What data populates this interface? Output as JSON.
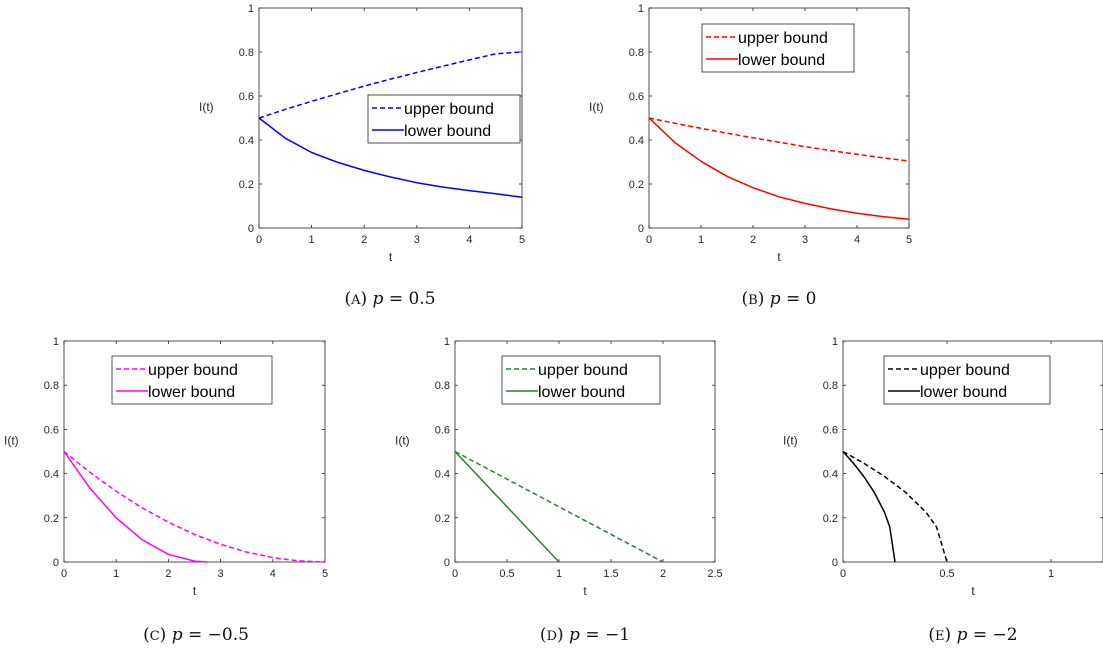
{
  "chart_data": [
    {
      "type": "line",
      "caption": {
        "letter": "A",
        "param": "p",
        "value": "0.5"
      },
      "xlabel": "t",
      "ylabel": "I(t)",
      "xlim": [
        0,
        5
      ],
      "ylim": [
        0,
        1
      ],
      "xticks": [
        "0",
        "1",
        "2",
        "3",
        "4",
        "5"
      ],
      "yticks": [
        "0",
        "0.2",
        "0.4",
        "0.6",
        "0.8",
        "1"
      ],
      "color": "#0000ff",
      "legend": {
        "placement": "center-right"
      },
      "series": [
        {
          "name": "upper bound",
          "style": "dashed",
          "x": [
            0,
            0.5,
            1,
            1.5,
            2,
            2.5,
            3,
            3.5,
            4,
            4.5,
            5
          ],
          "y": [
            0.5,
            0.539,
            0.576,
            0.611,
            0.645,
            0.677,
            0.707,
            0.736,
            0.764,
            0.792,
            0.8
          ]
        },
        {
          "name": "lower bound",
          "style": "solid",
          "x": [
            0,
            0.5,
            1,
            1.5,
            2,
            2.5,
            3,
            3.5,
            4,
            4.5,
            5
          ],
          "y": [
            0.5,
            0.408,
            0.343,
            0.298,
            0.262,
            0.232,
            0.206,
            0.186,
            0.17,
            0.156,
            0.14
          ]
        }
      ]
    },
    {
      "type": "line",
      "caption": {
        "letter": "B",
        "param": "p",
        "value": "0"
      },
      "xlabel": "t",
      "ylabel": "I(t)",
      "xlim": [
        0,
        5
      ],
      "ylim": [
        0,
        1
      ],
      "xticks": [
        "0",
        "1",
        "2",
        "3",
        "4",
        "5"
      ],
      "yticks": [
        "0",
        "0.2",
        "0.4",
        "0.6",
        "0.8",
        "1"
      ],
      "color": "#ff0000",
      "legend": {
        "placement": "top-center"
      },
      "series": [
        {
          "name": "upper bound",
          "style": "dashed",
          "x": [
            0,
            0.5,
            1,
            1.5,
            2,
            2.5,
            3,
            3.5,
            4,
            4.5,
            5
          ],
          "y": [
            0.5,
            0.476,
            0.453,
            0.431,
            0.41,
            0.39,
            0.37,
            0.352,
            0.335,
            0.319,
            0.304
          ]
        },
        {
          "name": "lower bound",
          "style": "solid",
          "x": [
            0,
            0.5,
            1,
            1.5,
            2,
            2.5,
            3,
            3.5,
            4,
            4.5,
            5
          ],
          "y": [
            0.5,
            0.388,
            0.303,
            0.235,
            0.183,
            0.142,
            0.112,
            0.087,
            0.067,
            0.052,
            0.04
          ]
        }
      ]
    },
    {
      "type": "line",
      "caption": {
        "letter": "C",
        "param": "p",
        "value": "−0.5"
      },
      "xlabel": "t",
      "ylabel": "I(t)",
      "xlim": [
        0,
        5
      ],
      "ylim": [
        0,
        1
      ],
      "xticks": [
        "0",
        "1",
        "2",
        "3",
        "4",
        "5"
      ],
      "yticks": [
        "0",
        "0.2",
        "0.4",
        "0.6",
        "0.8",
        "1"
      ],
      "color": "#ff00ff",
      "legend": {
        "placement": "top-right"
      },
      "series": [
        {
          "name": "upper bound",
          "style": "dashed",
          "x": [
            0,
            0.5,
            1,
            1.5,
            2,
            2.5,
            3,
            3.5,
            4,
            4.5,
            5
          ],
          "y": [
            0.5,
            0.405,
            0.32,
            0.245,
            0.18,
            0.125,
            0.08,
            0.045,
            0.02,
            0.005,
            0.0
          ]
        },
        {
          "name": "lower bound",
          "style": "solid",
          "x": [
            0,
            0.5,
            1,
            1.5,
            2,
            2.5,
            2.75
          ],
          "y": [
            0.5,
            0.333,
            0.2,
            0.1,
            0.035,
            0.004,
            0.0
          ]
        }
      ]
    },
    {
      "type": "line",
      "caption": {
        "letter": "D",
        "param": "p",
        "value": "−1"
      },
      "xlabel": "t",
      "ylabel": "I(t)",
      "xlim": [
        0,
        2.5
      ],
      "ylim": [
        0,
        1
      ],
      "xticks": [
        "0",
        "0.5",
        "1",
        "1.5",
        "2",
        "2.5"
      ],
      "yticks": [
        "0",
        "0.2",
        "0.4",
        "0.6",
        "0.8",
        "1"
      ],
      "color": "#2e7d32",
      "legend": {
        "placement": "top-right"
      },
      "series": [
        {
          "name": "upper bound",
          "style": "dashed",
          "x": [
            0,
            2
          ],
          "y": [
            0.5,
            0.0
          ]
        },
        {
          "name": "lower bound",
          "style": "solid",
          "x": [
            0,
            1
          ],
          "y": [
            0.5,
            0.0
          ]
        }
      ]
    },
    {
      "type": "line",
      "caption": {
        "letter": "E",
        "param": "p",
        "value": "−2"
      },
      "xlabel": "t",
      "ylabel": "I(t)",
      "xlim": [
        0,
        1.25
      ],
      "ylim": [
        0,
        1
      ],
      "xticks": [
        "0",
        "0.5",
        "1"
      ],
      "yticks": [
        "0",
        "0.2",
        "0.4",
        "0.6",
        "0.8",
        "1"
      ],
      "color": "#000000",
      "legend": {
        "placement": "top-right"
      },
      "series": [
        {
          "name": "upper bound",
          "style": "dashed",
          "x": [
            0,
            0.1,
            0.2,
            0.3,
            0.4,
            0.45,
            0.5
          ],
          "y": [
            0.5,
            0.447,
            0.387,
            0.316,
            0.224,
            0.158,
            0.0
          ]
        },
        {
          "name": "lower bound",
          "style": "solid",
          "x": [
            0,
            0.05,
            0.1,
            0.15,
            0.2,
            0.225,
            0.25
          ],
          "y": [
            0.5,
            0.447,
            0.387,
            0.316,
            0.224,
            0.158,
            0.0
          ]
        }
      ]
    }
  ]
}
